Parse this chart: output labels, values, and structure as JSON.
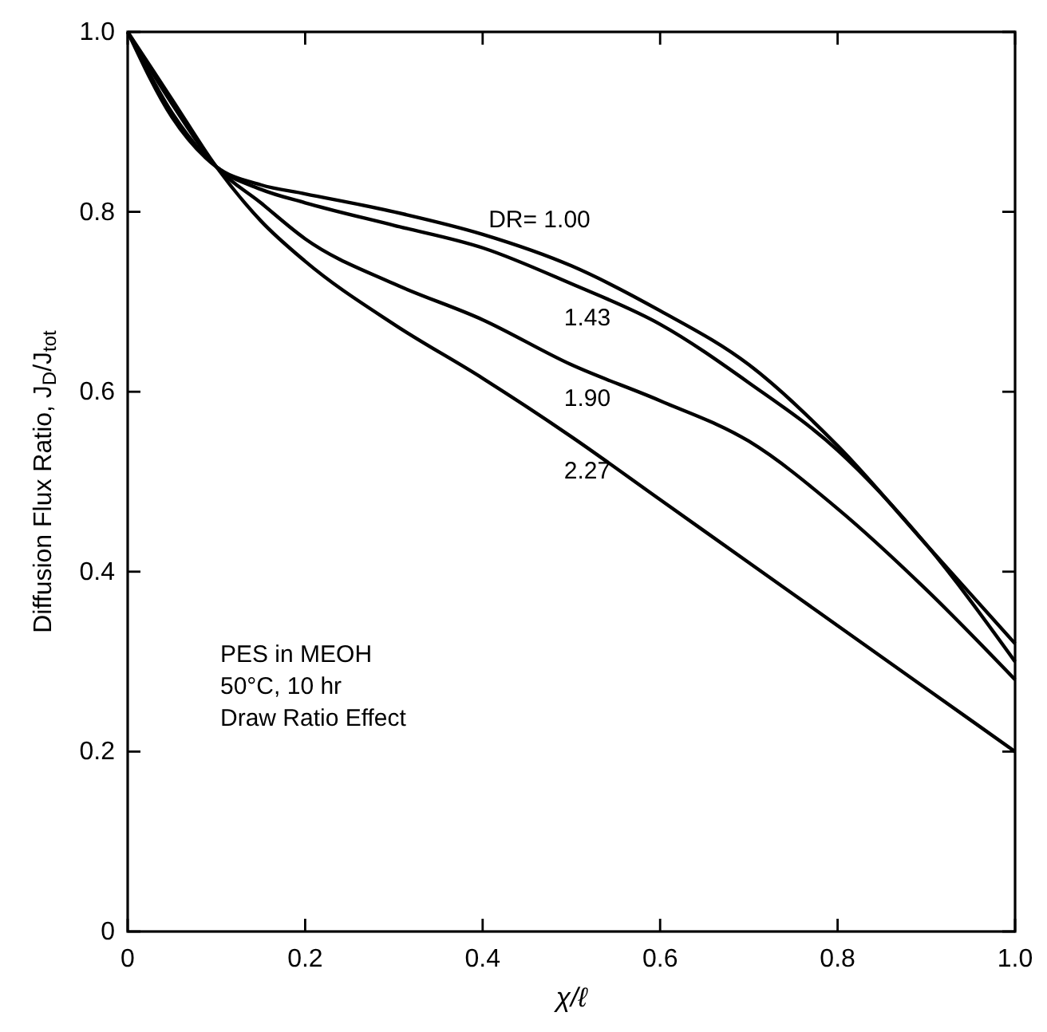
{
  "chart_data": {
    "type": "line",
    "xlabel": "χ/ℓ",
    "ylabel": "Diffusion Flux Ratio, J$_{D}$/J$_{tot}$",
    "xlim": [
      0,
      1
    ],
    "ylim": [
      0,
      1
    ],
    "xticks": [
      0,
      0.2,
      0.4,
      0.6,
      0.8,
      {
        "value": 1,
        "label": "1.0"
      }
    ],
    "yticks": [
      0,
      0.2,
      0.4,
      0.6,
      0.8,
      {
        "value": 1,
        "label": "1.0"
      }
    ],
    "grid": false,
    "marker": "none",
    "line_style": "solid",
    "x": [
      0,
      0.05,
      0.1,
      0.15,
      0.2,
      0.3,
      0.4,
      0.5,
      0.6,
      0.7,
      0.8,
      0.9,
      1.0
    ],
    "series": [
      {
        "name": "DR= 1.00",
        "color": "#000000",
        "values": [
          1,
          0.905,
          0.85,
          0.83,
          0.82,
          0.8,
          0.775,
          0.74,
          0.69,
          0.63,
          0.54,
          0.43,
          0.32
        ]
      },
      {
        "name": "1.43",
        "color": "#000000",
        "values": [
          1,
          0.91,
          0.85,
          0.825,
          0.81,
          0.785,
          0.76,
          0.72,
          0.675,
          0.61,
          0.535,
          0.43,
          0.3
        ]
      },
      {
        "name": "1.90",
        "color": "#000000",
        "values": [
          1,
          0.92,
          0.85,
          0.81,
          0.77,
          0.72,
          0.68,
          0.63,
          0.59,
          0.545,
          0.47,
          0.38,
          0.28
        ]
      },
      {
        "name": "2.27",
        "color": "#000000",
        "values": [
          1,
          0.925,
          0.85,
          0.79,
          0.745,
          0.675,
          0.615,
          0.55,
          0.48,
          0.41,
          0.34,
          0.27,
          0.2
        ]
      }
    ],
    "annotations": [
      "PES in MEOH",
      "50°C, 10 hr",
      "Draw Ratio Effect"
    ]
  }
}
